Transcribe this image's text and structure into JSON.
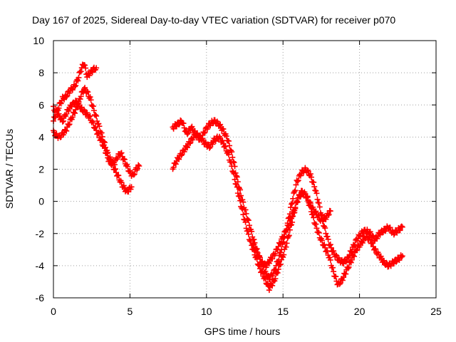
{
  "chart_data": {
    "type": "scatter",
    "title": "Day 167 of 2025, Sidereal Day-to-day VTEC variation (SDTVAR) for receiver p070",
    "xlabel": "GPS time / hours",
    "ylabel": "SDTVAR / TECUs",
    "xlim": [
      0,
      25
    ],
    "ylim": [
      -6,
      10
    ],
    "xticks": [
      0,
      5,
      10,
      15,
      20,
      25
    ],
    "yticks": [
      -6,
      -4,
      -2,
      0,
      2,
      4,
      6,
      8,
      10
    ],
    "grid": true,
    "marker": "+",
    "color": "#ff0000",
    "series": [
      {
        "x": [
          0.0,
          0.2,
          0.4,
          0.6,
          0.8,
          1.0,
          1.2,
          1.4,
          1.6,
          1.8,
          2.0,
          2.2,
          2.4,
          2.6,
          2.8
        ],
        "y": [
          5.0,
          5.5,
          6.0,
          6.4,
          6.5,
          6.8,
          7.0,
          7.2,
          7.6,
          8.2,
          8.6,
          7.8,
          8.0,
          8.2,
          8.3
        ]
      },
      {
        "x": [
          0.0,
          0.2,
          0.4,
          0.6,
          0.8,
          1.0,
          1.2,
          1.4,
          1.6,
          1.8,
          2.0,
          2.2,
          2.4,
          2.6,
          2.8,
          3.0,
          3.2,
          3.4,
          3.6,
          3.8,
          4.0,
          4.2,
          4.4,
          4.6,
          4.8,
          5.0,
          5.2,
          5.4,
          5.6
        ],
        "y": [
          4.3,
          4.1,
          4.0,
          4.2,
          4.4,
          4.8,
          5.2,
          5.6,
          6.0,
          6.6,
          7.0,
          6.8,
          6.4,
          5.8,
          5.2,
          4.6,
          4.0,
          3.4,
          2.8,
          2.5,
          2.4,
          2.8,
          3.0,
          2.6,
          2.2,
          1.8,
          1.6,
          2.0,
          2.2
        ]
      },
      {
        "x": [
          0.0,
          0.3,
          0.6,
          0.9,
          1.2,
          1.5,
          1.8,
          2.1,
          2.4,
          2.7,
          3.0,
          3.3,
          3.6,
          3.9,
          4.2,
          4.5,
          4.8,
          5.1
        ],
        "y": [
          5.8,
          5.4,
          5.0,
          5.6,
          6.0,
          6.2,
          5.8,
          5.5,
          5.2,
          4.6,
          4.0,
          3.4,
          2.6,
          2.2,
          1.6,
          1.0,
          0.6,
          0.9
        ]
      },
      {
        "x": [
          7.8,
          8.1,
          8.4,
          8.7,
          9.0,
          9.3,
          9.6,
          9.9,
          10.2,
          10.5,
          10.8,
          11.1,
          11.4,
          11.7,
          12.0,
          12.3,
          12.6,
          12.9,
          13.2,
          13.5,
          13.8,
          14.1,
          14.4,
          14.7,
          15.0,
          15.3,
          15.6,
          15.9,
          16.2,
          16.5,
          16.8,
          17.1,
          17.4,
          17.7,
          18.0,
          18.3,
          18.6,
          18.9,
          19.2,
          19.5,
          19.8,
          20.1,
          20.4,
          20.7,
          21.0,
          21.3,
          21.6,
          21.9,
          22.2,
          22.5,
          22.8
        ],
        "y": [
          4.6,
          4.8,
          5.0,
          4.2,
          4.6,
          4.2,
          3.8,
          4.4,
          4.8,
          5.0,
          4.8,
          4.4,
          3.8,
          2.8,
          1.4,
          0.2,
          -0.8,
          -1.8,
          -2.8,
          -3.6,
          -4.4,
          -4.8,
          -4.4,
          -3.6,
          -2.6,
          -1.4,
          0.0,
          1.2,
          1.8,
          2.0,
          1.6,
          0.8,
          -0.4,
          -1.6,
          -2.6,
          -3.2,
          -3.6,
          -3.8,
          -3.6,
          -3.0,
          -2.4,
          -2.0,
          -1.8,
          -2.0,
          -2.4,
          -2.0,
          -1.8,
          -1.6,
          -2.0,
          -1.8,
          -1.6
        ]
      },
      {
        "x": [
          7.8,
          8.1,
          8.4,
          8.7,
          9.0,
          9.3,
          9.6,
          9.9,
          10.2,
          10.5,
          10.8,
          11.1,
          11.4,
          11.7,
          12.0,
          12.3,
          12.6,
          12.9,
          13.2,
          13.5,
          13.8,
          14.1,
          14.4,
          14.7,
          15.0,
          15.3,
          15.6,
          15.9,
          16.2,
          16.5,
          16.8,
          17.1,
          17.4,
          17.7,
          18.0,
          18.3,
          18.6,
          18.9,
          19.2,
          19.5,
          19.8,
          20.1,
          20.4,
          20.7,
          21.0,
          21.3,
          21.6,
          21.9,
          22.2,
          22.5,
          22.8
        ],
        "y": [
          2.1,
          2.6,
          3.0,
          3.4,
          3.8,
          4.2,
          4.0,
          3.6,
          3.4,
          3.8,
          4.0,
          3.6,
          3.0,
          2.0,
          0.8,
          -0.4,
          -1.6,
          -2.6,
          -3.4,
          -4.2,
          -4.8,
          -5.4,
          -5.0,
          -4.2,
          -3.4,
          -2.4,
          -1.2,
          0.0,
          0.6,
          0.4,
          -0.4,
          -1.4,
          -2.2,
          -2.8,
          -3.4,
          -4.4,
          -5.2,
          -4.8,
          -4.2,
          -3.6,
          -3.0,
          -2.6,
          -2.2,
          -2.4,
          -3.0,
          -3.4,
          -3.8,
          -4.0,
          -3.8,
          -3.6,
          -3.4
        ]
      },
      {
        "x": [
          13.0,
          13.3,
          13.6,
          13.9,
          14.2,
          14.5,
          14.8,
          15.1,
          15.4,
          15.7,
          16.0,
          16.3,
          16.6,
          16.9,
          17.2,
          17.5,
          17.8,
          18.1
        ],
        "y": [
          -2.6,
          -3.2,
          -3.8,
          -4.0,
          -3.6,
          -3.2,
          -2.6,
          -2.0,
          -1.4,
          -0.6,
          0.2,
          0.6,
          0.2,
          -0.4,
          -0.8,
          -1.2,
          -1.0,
          -0.6
        ]
      }
    ]
  }
}
